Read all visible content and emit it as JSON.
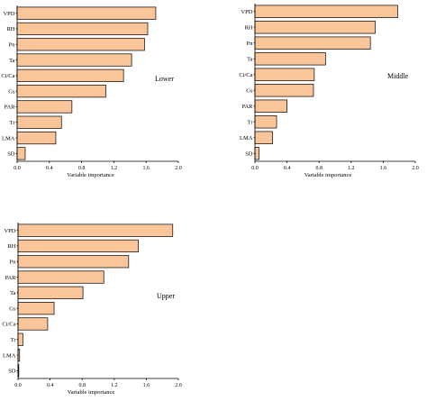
{
  "chart_data": [
    {
      "type": "bar",
      "orientation": "horizontal",
      "panel_label": "Lower",
      "categories": [
        "VPD",
        "RH",
        "Pn",
        "Ta",
        "Ci/Ca",
        "Gs",
        "PAR",
        "Tr",
        "LMA",
        "SD"
      ],
      "values": [
        1.72,
        1.62,
        1.58,
        1.42,
        1.32,
        1.1,
        0.68,
        0.55,
        0.48,
        0.1
      ],
      "xlabel": "Variable importance",
      "xlim": [
        0,
        2.0
      ],
      "xticks": [
        "0.0",
        "0.4",
        "0.8",
        "1.2",
        "1.6",
        "2.0"
      ],
      "grid": false,
      "bar_color": "#fbc59a"
    },
    {
      "type": "bar",
      "orientation": "horizontal",
      "panel_label": "Middle",
      "categories": [
        "VPD",
        "RH",
        "Pn",
        "Ta",
        "Ci/Ca",
        "Gs",
        "PAR",
        "Tr",
        "LMA",
        "SD"
      ],
      "values": [
        1.78,
        1.5,
        1.44,
        0.88,
        0.74,
        0.73,
        0.4,
        0.27,
        0.22,
        0.05
      ],
      "xlabel": "Variable importance",
      "xlim": [
        0,
        2.0
      ],
      "xticks": [
        "0.0",
        "0.4",
        "0.8",
        "1.2",
        "1.6",
        "2.0"
      ],
      "grid": false,
      "bar_color": "#fbc59a"
    },
    {
      "type": "bar",
      "orientation": "horizontal",
      "panel_label": "Upper",
      "categories": [
        "VPD",
        "RH",
        "Pn",
        "PAR",
        "Ta",
        "Gs",
        "Ci/Ca",
        "Tr",
        "LMA",
        "SD"
      ],
      "values": [
        1.93,
        1.5,
        1.38,
        1.07,
        0.81,
        0.45,
        0.37,
        0.06,
        0.02,
        0.01
      ],
      "xlabel": "Variable importance",
      "xlim": [
        0,
        2.0
      ],
      "xticks": [
        "0.0",
        "0.4",
        "0.8",
        "1.2",
        "1.6",
        "2.0"
      ],
      "grid": false,
      "bar_color": "#fbc59a"
    }
  ]
}
